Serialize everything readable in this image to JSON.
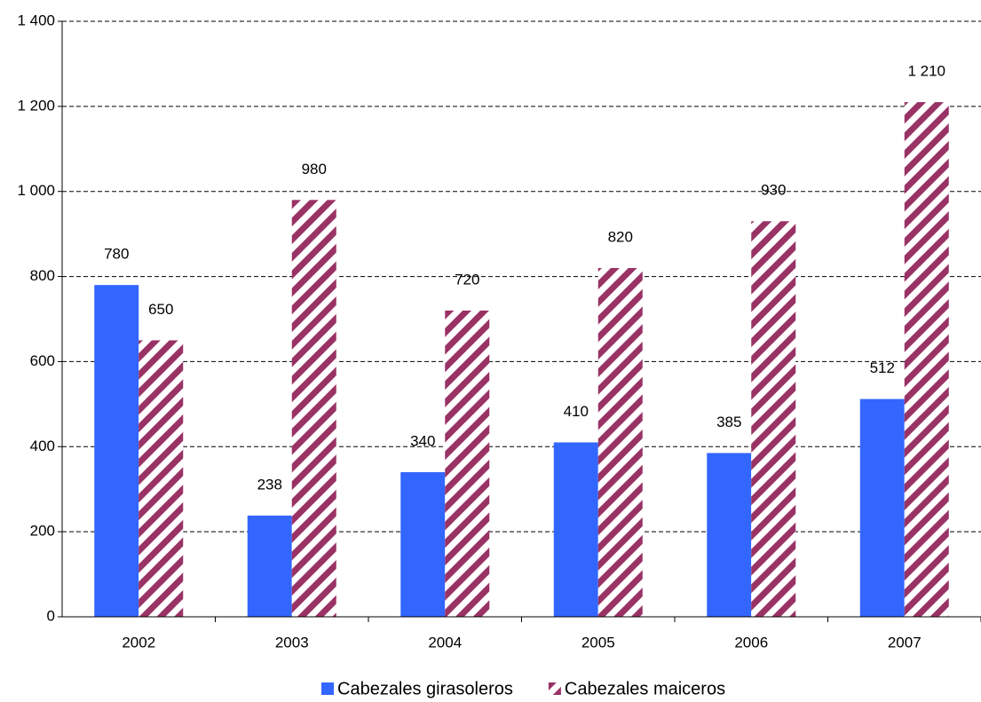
{
  "chart_data": {
    "type": "bar",
    "categories": [
      "2002",
      "2003",
      "2004",
      "2005",
      "2006",
      "2007"
    ],
    "series": [
      {
        "name": "Cabezales girasoleros",
        "color": "#3366ff",
        "values": [
          780,
          238,
          340,
          410,
          385,
          512
        ]
      },
      {
        "name": "Cabezales maiceros",
        "color": "#993366",
        "pattern": "hatch",
        "values": [
          650,
          980,
          720,
          820,
          930,
          1210
        ],
        "value_labels": [
          "650",
          "980",
          "720",
          "820",
          "930",
          "1 210"
        ]
      }
    ],
    "ylim": [
      0,
      1400
    ],
    "yticks": [
      0,
      200,
      400,
      600,
      800,
      {
        "value": 1000,
        "label": "1 000"
      },
      {
        "value": 1200,
        "label": "1 200"
      },
      {
        "value": 1400,
        "label": "1 400"
      }
    ],
    "grid": true,
    "legend": "bottom"
  }
}
